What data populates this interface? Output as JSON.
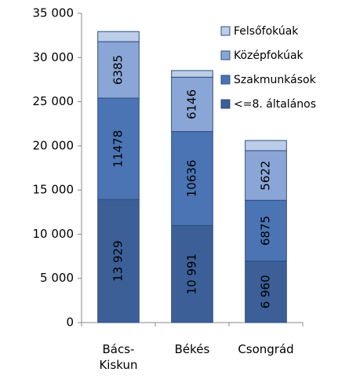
{
  "chart_data": {
    "type": "stacked_bar",
    "categories": [
      "Bács-\nKiskun",
      "Békés",
      "Csongrád"
    ],
    "series": [
      {
        "name": "<=8. általános",
        "color": "#3b5f96",
        "values": [
          13929,
          10991,
          6960
        ],
        "value_labels": [
          "13 929",
          "10 991",
          "6 960"
        ]
      },
      {
        "name": "Szakmunkások",
        "color": "#4a74b4",
        "values": [
          11478,
          10636,
          6875
        ]
      },
      {
        "name": "Középfokúak",
        "color": "#8aa6d6",
        "values": [
          6385,
          6146,
          5622
        ]
      },
      {
        "name": "Felsőfokúak",
        "color": "#bccde8",
        "values": [
          1150,
          750,
          1150
        ]
      }
    ],
    "ylim": [
      0,
      35000
    ],
    "yticks": [
      0,
      {
        "value": 5000,
        "label": "5 000"
      },
      {
        "value": 10000,
        "label": "10 000"
      },
      {
        "value": 15000,
        "label": "15 000"
      },
      {
        "value": 20000,
        "label": "20 000"
      },
      {
        "value": 25000,
        "label": "25 000"
      },
      {
        "value": 30000,
        "label": "30 000"
      },
      {
        "value": 35000,
        "label": "35 000"
      }
    ],
    "legend": "top-right"
  }
}
